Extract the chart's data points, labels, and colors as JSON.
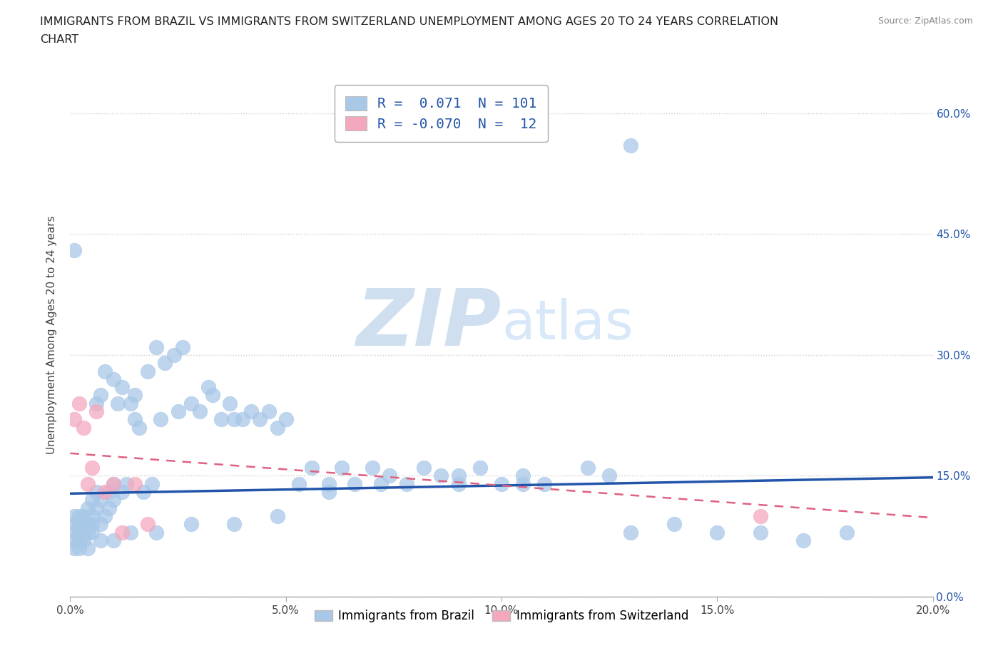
{
  "title_line1": "IMMIGRANTS FROM BRAZIL VS IMMIGRANTS FROM SWITZERLAND UNEMPLOYMENT AMONG AGES 20 TO 24 YEARS CORRELATION",
  "title_line2": "CHART",
  "source": "Source: ZipAtlas.com",
  "ylabel": "Unemployment Among Ages 20 to 24 years",
  "xlim": [
    0.0,
    0.2
  ],
  "ylim": [
    0.0,
    0.65
  ],
  "xticks": [
    0.0,
    0.05,
    0.1,
    0.15,
    0.2
  ],
  "xtick_labels": [
    "0.0%",
    "5.0%",
    "10.0%",
    "15.0%",
    "20.0%"
  ],
  "yticks": [
    0.0,
    0.15,
    0.3,
    0.45,
    0.6
  ],
  "ytick_labels": [
    "0.0%",
    "15.0%",
    "30.0%",
    "45.0%",
    "60.0%"
  ],
  "brazil_color": "#a8c8e8",
  "switzerland_color": "#f4a8be",
  "brazil_line_color": "#2255aa",
  "switzerland_line_color": "#e06080",
  "legend_text_color": "#2255aa",
  "brazil_R": 0.071,
  "brazil_N": 101,
  "switzerland_R": -0.07,
  "switzerland_N": 12,
  "brazil_x": [
    0.001,
    0.001,
    0.001,
    0.001,
    0.001,
    0.002,
    0.002,
    0.002,
    0.002,
    0.003,
    0.003,
    0.003,
    0.003,
    0.004,
    0.004,
    0.004,
    0.005,
    0.005,
    0.005,
    0.005,
    0.006,
    0.006,
    0.006,
    0.007,
    0.007,
    0.007,
    0.008,
    0.008,
    0.009,
    0.009,
    0.01,
    0.01,
    0.01,
    0.011,
    0.012,
    0.012,
    0.013,
    0.014,
    0.015,
    0.015,
    0.016,
    0.017,
    0.018,
    0.019,
    0.02,
    0.021,
    0.022,
    0.024,
    0.025,
    0.026,
    0.028,
    0.03,
    0.032,
    0.033,
    0.035,
    0.037,
    0.038,
    0.04,
    0.042,
    0.044,
    0.046,
    0.048,
    0.05,
    0.053,
    0.056,
    0.06,
    0.063,
    0.066,
    0.07,
    0.074,
    0.078,
    0.082,
    0.086,
    0.09,
    0.095,
    0.1,
    0.105,
    0.11,
    0.12,
    0.125,
    0.13,
    0.14,
    0.15,
    0.16,
    0.17,
    0.18,
    0.13,
    0.105,
    0.09,
    0.072,
    0.06,
    0.048,
    0.038,
    0.028,
    0.02,
    0.014,
    0.01,
    0.007,
    0.004,
    0.002,
    0.001
  ],
  "brazil_y": [
    0.08,
    0.09,
    0.07,
    0.1,
    0.06,
    0.09,
    0.1,
    0.07,
    0.08,
    0.09,
    0.08,
    0.1,
    0.07,
    0.09,
    0.11,
    0.08,
    0.1,
    0.12,
    0.08,
    0.09,
    0.24,
    0.11,
    0.13,
    0.25,
    0.12,
    0.09,
    0.1,
    0.28,
    0.11,
    0.13,
    0.27,
    0.14,
    0.12,
    0.24,
    0.26,
    0.13,
    0.14,
    0.24,
    0.22,
    0.25,
    0.21,
    0.13,
    0.28,
    0.14,
    0.31,
    0.22,
    0.29,
    0.3,
    0.23,
    0.31,
    0.24,
    0.23,
    0.26,
    0.25,
    0.22,
    0.24,
    0.22,
    0.22,
    0.23,
    0.22,
    0.23,
    0.21,
    0.22,
    0.14,
    0.16,
    0.14,
    0.16,
    0.14,
    0.16,
    0.15,
    0.14,
    0.16,
    0.15,
    0.14,
    0.16,
    0.14,
    0.15,
    0.14,
    0.16,
    0.15,
    0.08,
    0.09,
    0.08,
    0.08,
    0.07,
    0.08,
    0.56,
    0.14,
    0.15,
    0.14,
    0.13,
    0.1,
    0.09,
    0.09,
    0.08,
    0.08,
    0.07,
    0.07,
    0.06,
    0.06,
    0.43
  ],
  "switzerland_x": [
    0.001,
    0.002,
    0.003,
    0.004,
    0.005,
    0.006,
    0.008,
    0.01,
    0.012,
    0.015,
    0.16,
    0.018
  ],
  "switzerland_y": [
    0.22,
    0.24,
    0.21,
    0.14,
    0.16,
    0.23,
    0.13,
    0.14,
    0.08,
    0.14,
    0.1,
    0.09
  ],
  "brazil_trendline_start_y": 0.128,
  "brazil_trendline_end_y": 0.148,
  "switzerland_trendline_start_y": 0.178,
  "switzerland_trendline_end_y": 0.098
}
